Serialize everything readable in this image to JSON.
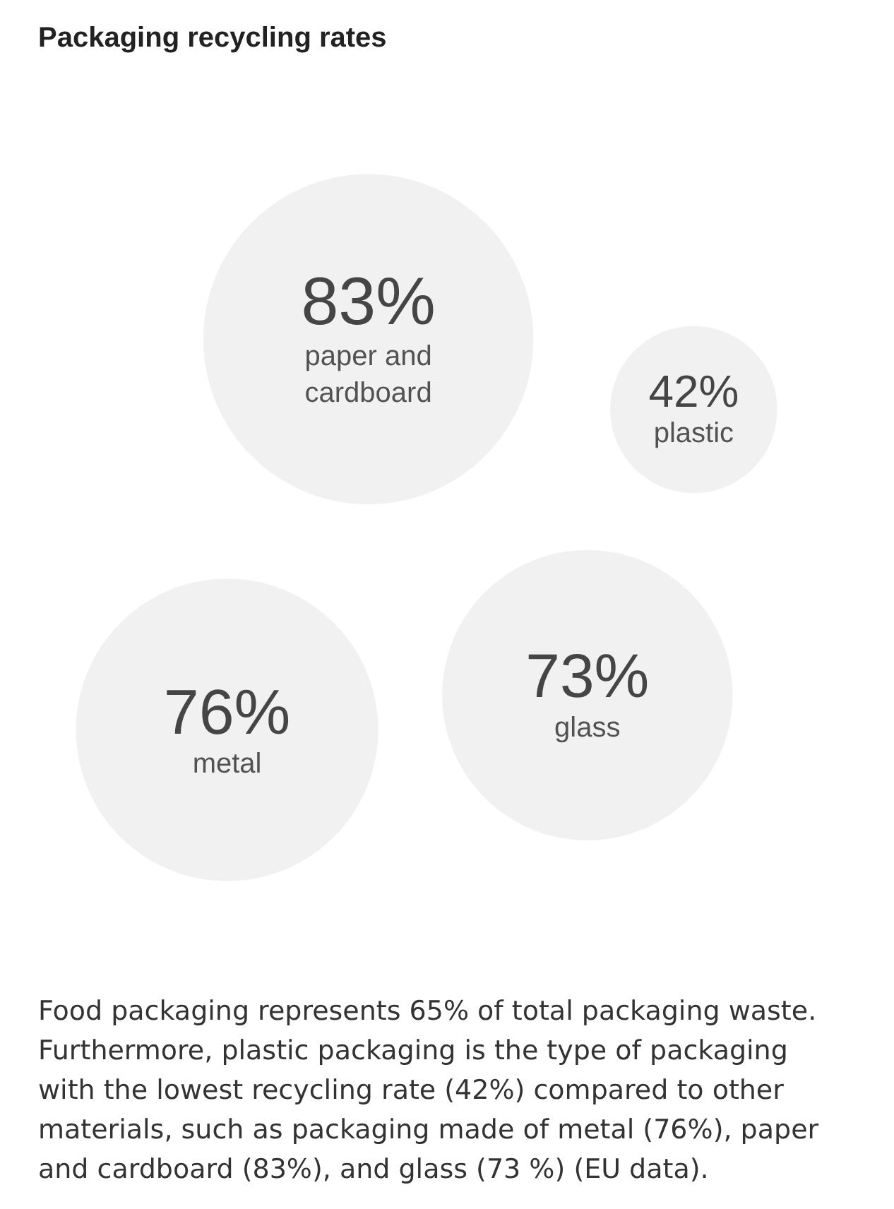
{
  "chart_data": {
    "type": "other",
    "title": "Packaging recycling rates",
    "categories": [
      "paper and cardboard",
      "plastic",
      "metal",
      "glass"
    ],
    "values": [
      83,
      42,
      76,
      73
    ],
    "value_labels": [
      "83%",
      "42%",
      "76%",
      "73%"
    ],
    "color": "#eeeeee",
    "annotations": [
      "Food packaging represents 65% of total packaging waste. Furthermore, plastic packaging is the type of packaging with the lowest recycling rate (42%) compared to other materials, such as packaging made of metal (76%), paper and cardboard (83%), and glass (73 %) (EU data)."
    ]
  }
}
